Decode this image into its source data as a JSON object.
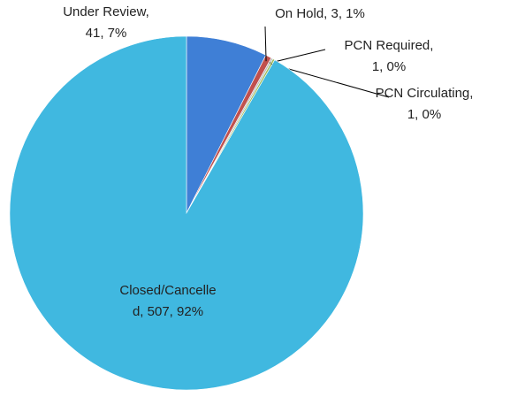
{
  "chart_data": {
    "type": "pie",
    "values": [
      41,
      3,
      1,
      1,
      507
    ],
    "value_labels": [
      [
        "Under Review,",
        "41, 7%"
      ],
      [
        "On Hold, 3, 1%"
      ],
      [
        "PCN Required,",
        "1, 0%"
      ],
      [
        "PCN Circulating,",
        "1, 0%"
      ],
      [
        "Closed/Cancelle",
        "d, 507, 92%"
      ]
    ],
    "colors": [
      "#3f7fd6",
      "#c0504d",
      "#bfbfbf",
      "#9bbb59",
      "#40b8e0"
    ]
  }
}
